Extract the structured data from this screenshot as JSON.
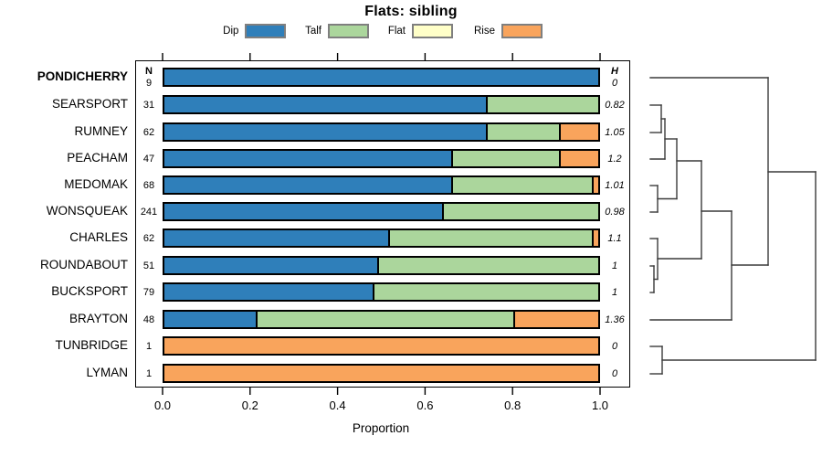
{
  "title": "Flats: sibling",
  "axis": {
    "label": "Proportion",
    "ticks": [
      "0.0",
      "0.2",
      "0.4",
      "0.6",
      "0.8",
      "1.0"
    ],
    "min": 0,
    "max": 1
  },
  "columns": {
    "n_header": "N",
    "h_header": "H"
  },
  "colors": {
    "dip": "#2f7fba",
    "talf": "#abd69c",
    "flat": "#ffffc8",
    "rise": "#f9a45c",
    "bar_border": "#000000",
    "legend_border": "#7f7f7f",
    "dendrogram": "#3a3a3a"
  },
  "legend": [
    {
      "label": "Dip",
      "color_key": "dip"
    },
    {
      "label": "Talf",
      "color_key": "talf"
    },
    {
      "label": "Flat",
      "color_key": "flat"
    },
    {
      "label": "Rise",
      "color_key": "rise"
    }
  ],
  "chart_data": {
    "type": "bar",
    "stacked": true,
    "orientation": "horizontal",
    "title": "Flats: sibling",
    "xlabel": "Proportion",
    "xlim": [
      0,
      1
    ],
    "grid": false,
    "legend_entries": [
      "Dip",
      "Talf",
      "Flat",
      "Rise"
    ],
    "categories": [
      "PONDICHERRY",
      "SEARSPORT",
      "RUMNEY",
      "PEACHAM",
      "MEDOMAK",
      "WONSQUEAK",
      "CHARLES",
      "ROUNDABOUT",
      "BUCKSPORT",
      "BRAYTON",
      "TUNBRIDGE",
      "LYMAN"
    ],
    "highlight_category": "PONDICHERRY",
    "n_values": [
      9,
      31,
      62,
      47,
      68,
      241,
      62,
      51,
      79,
      48,
      1,
      1
    ],
    "h_values": [
      "0",
      "0.82",
      "1.05",
      "1.2",
      "1.01",
      "0.98",
      "1.1",
      "1",
      "1",
      "1.36",
      "0",
      "0"
    ],
    "series": [
      {
        "name": "Dip",
        "color_key": "dip",
        "values": [
          1.0,
          0.74,
          0.74,
          0.66,
          0.66,
          0.64,
          0.515,
          0.49,
          0.48,
          0.21,
          0,
          0
        ]
      },
      {
        "name": "Talf",
        "color_key": "talf",
        "values": [
          0,
          0.26,
          0.17,
          0.25,
          0.325,
          0.36,
          0.47,
          0.51,
          0.52,
          0.595,
          0,
          0
        ]
      },
      {
        "name": "Flat",
        "color_key": "flat",
        "values": [
          0,
          0,
          0,
          0,
          0,
          0,
          0,
          0,
          0,
          0,
          0,
          0
        ]
      },
      {
        "name": "Rise",
        "color_key": "rise",
        "values": [
          0,
          0,
          0.09,
          0.09,
          0.015,
          0,
          0.015,
          0,
          0,
          0.195,
          1.0,
          1.0
        ]
      }
    ]
  },
  "dendrogram": {
    "description": "hierarchical clustering tree drawn right of the plot; leaves align with category rows",
    "segments": [
      [
        712,
        85,
        841,
        85
      ],
      [
        712,
        115,
        724,
        115
      ],
      [
        712,
        145,
        724,
        145
      ],
      [
        724,
        115,
        724,
        145
      ],
      [
        724,
        130,
        728,
        130
      ],
      [
        712,
        174,
        728,
        174
      ],
      [
        728,
        130,
        728,
        174
      ],
      [
        728,
        152,
        741,
        152
      ],
      [
        712,
        203,
        720,
        203
      ],
      [
        712,
        232,
        720,
        232
      ],
      [
        720,
        203,
        720,
        232
      ],
      [
        720,
        217.5,
        741,
        217.5
      ],
      [
        741,
        152,
        741,
        217.5
      ],
      [
        741,
        176,
        768,
        176
      ],
      [
        712,
        261,
        720,
        261
      ],
      [
        712,
        291,
        716,
        291
      ],
      [
        712,
        320,
        716,
        320
      ],
      [
        716,
        291,
        716,
        320
      ],
      [
        716,
        305.5,
        720,
        305.5
      ],
      [
        720,
        261,
        720,
        305.5
      ],
      [
        720,
        283,
        768,
        283
      ],
      [
        768,
        176,
        768,
        283
      ],
      [
        768,
        231,
        801,
        231
      ],
      [
        712,
        350,
        801,
        350
      ],
      [
        801,
        231,
        801,
        350
      ],
      [
        801,
        290,
        841,
        290
      ],
      [
        841,
        85,
        841,
        290
      ],
      [
        841,
        188,
        893,
        188
      ],
      [
        712,
        379,
        725,
        379
      ],
      [
        712,
        409,
        725,
        409
      ],
      [
        725,
        379,
        725,
        409
      ],
      [
        725,
        394,
        893,
        394
      ],
      [
        893,
        188,
        893,
        394
      ]
    ]
  }
}
